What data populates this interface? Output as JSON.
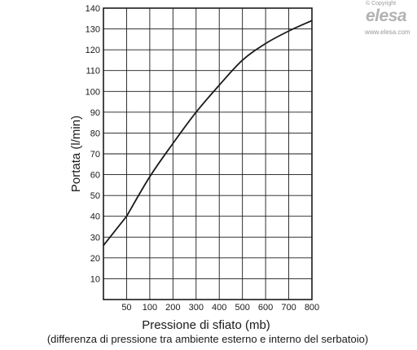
{
  "brand": {
    "copyright": "© Copyright",
    "logo": "elesa",
    "url": "www.elesa.com"
  },
  "chart_data": {
    "type": "line",
    "ylabel": "Portata (l/min)",
    "xlabel": "Pressione di sfiato (mb)",
    "xlabel_note": "(differenza di pressione tra ambiente esterno e interno del serbatoio)",
    "x_tick_labels": [
      "50",
      "100",
      "200",
      "300",
      "400",
      "500",
      "600",
      "700",
      "800"
    ],
    "y_ticks": [
      10,
      20,
      30,
      40,
      50,
      60,
      70,
      80,
      90,
      100,
      110,
      120,
      130,
      140
    ],
    "ylim": [
      0,
      140
    ],
    "grid": true,
    "series": [
      {
        "x_tick_index": [
          0,
          1,
          2,
          3,
          4,
          5,
          6,
          7,
          8,
          9
        ],
        "x": [
          0,
          50,
          100,
          200,
          300,
          400,
          500,
          600,
          700,
          800
        ],
        "values": [
          26,
          40,
          59,
          75,
          90,
          103,
          115,
          123,
          129,
          134
        ]
      }
    ]
  }
}
